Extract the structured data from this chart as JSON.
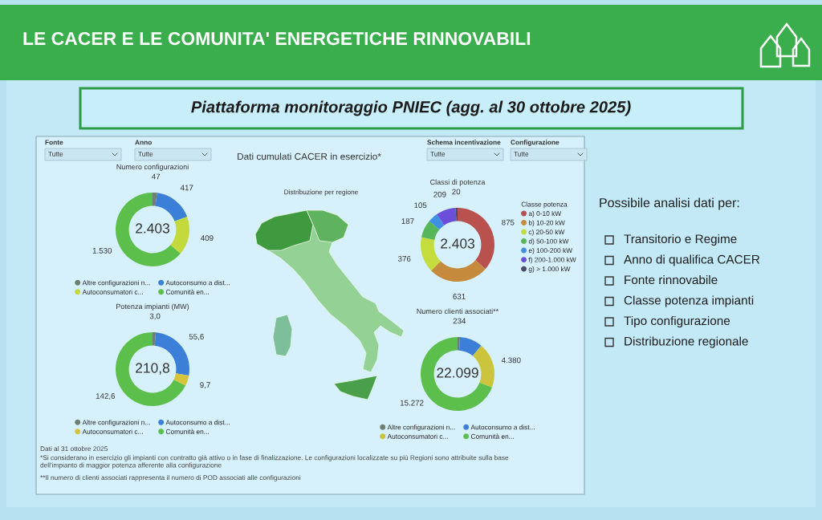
{
  "chart_data": [
    {
      "type": "other",
      "title": "LE CACER E LE COMUNITA' ENERGETICHE RINNOVABILI",
      "subtitle": "Piattaforma monitoraggio PNIEC (agg. al 30 ottobre 2025)"
    },
    {
      "type": "other",
      "title": "Dati cumulati CACER in esercizio*",
      "annotations": [
        "Fonte",
        "Tutte",
        "Anno",
        "Tutte",
        "Schema incentivazione",
        "Tutte",
        "Configurazione",
        "Tutte",
        "Distribuzione per regione",
        "Dati al 31 ottobre 2025",
        "*Si considerano in esercizio gli impianti con contratto già attivo o in fase di finalizzazione. Le configurazioni localizzate su più Regioni sono attribuite sulla base\ndell'impianto di maggior potenza afferente alla configurazione",
        "**Il numero di clienti associati rappresenta il numero di POD associati alle configurazioni"
      ]
    },
    {
      "type": "donut",
      "title": "Numero configurazioni",
      "categories": [
        "Altre configurazioni n...",
        "Autoconsumo a dist...",
        "Autoconsumatori c...",
        "Comunità en..."
      ],
      "values": [
        47,
        417,
        409,
        1530
      ],
      "colors": [
        "#6f7f74",
        "#3b7fd9",
        "#c3d93c",
        "#5dbf4b"
      ],
      "value_labels": [
        "47",
        "417",
        "409",
        "1.530"
      ],
      "annotations": [
        "2.403"
      ],
      "legend": "bottom"
    },
    {
      "type": "donut",
      "title": "Classi di potenza",
      "categories": [
        "a) 0-10 kW",
        "b) 10-20 kW",
        "c) 20-50 kW",
        "d) 50-100 kW",
        "e) 100-200 kW",
        "f) 200-1.000 kW",
        "g) > 1.000 kW"
      ],
      "values": [
        875,
        631,
        376,
        187,
        105,
        209,
        20
      ],
      "colors": [
        "#b9514e",
        "#c58a3c",
        "#c4dc3d",
        "#58b65a",
        "#3f8fe3",
        "#6b4fd8",
        "#4a4a6a"
      ],
      "value_labels": [
        "875",
        "631",
        "376",
        "187",
        "105",
        "209",
        "20"
      ],
      "annotations": [
        "2.403"
      ],
      "legend": "right",
      "legend_title": "Classe potenza"
    },
    {
      "type": "donut",
      "title": "Potenza impianti (MW)",
      "categories": [
        "Altre configurazioni n...",
        "Autoconsumo a dist...",
        "Autoconsumatori c...",
        "Comunità en..."
      ],
      "values": [
        3.0,
        55.6,
        9.7,
        142.6
      ],
      "colors": [
        "#6f7f74",
        "#3b7fd9",
        "#d6c43a",
        "#5dbf4b"
      ],
      "value_labels": [
        "3,0",
        "55,6",
        "9,7",
        "142,6"
      ],
      "annotations": [
        "210,8"
      ],
      "legend": "bottom"
    },
    {
      "type": "donut",
      "title": "Numero clienti associati**",
      "categories": [
        "Altre configurazioni n...",
        "Autoconsumo a dist...",
        "Autoconsumatori c...",
        "Comunità en..."
      ],
      "values": [
        234,
        2213,
        4380,
        15272
      ],
      "colors": [
        "#6f7f74",
        "#3b7fd9",
        "#cbc43c",
        "#5dbf4b"
      ],
      "value_labels": [
        "234",
        null,
        "4.380",
        "15.272"
      ],
      "annotations": [
        "22.099"
      ],
      "legend": "bottom"
    },
    {
      "type": "other",
      "title": "Possibile analisi dati per:",
      "annotations": [
        "Transitorio e Regime",
        "Anno di qualifica CACER",
        "Fonte rinnovabile",
        "Classe potenza impianti",
        "Tipo configurazione",
        "Distribuzione regionale"
      ]
    }
  ]
}
